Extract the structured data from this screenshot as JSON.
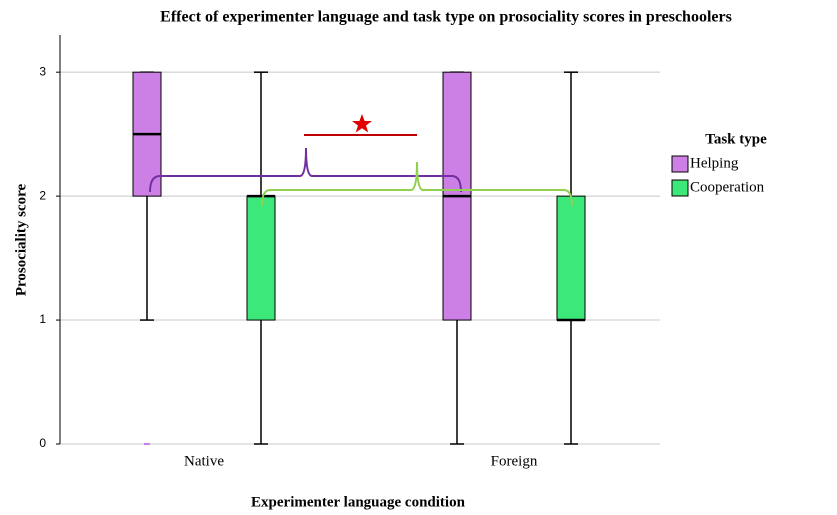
{
  "chart_data": {
    "type": "box",
    "title": "Effect of experimenter language and task type on prosociality scores in preschoolers",
    "xlabel": "Experimenter  language condition",
    "ylabel": "Prosociality score",
    "categories": [
      "Native",
      "Foreign"
    ],
    "legend_title": "Task type",
    "ylim": [
      0,
      3.3
    ],
    "yticks": [
      0,
      1,
      2,
      3
    ],
    "grid": true,
    "series": [
      {
        "name": "Helping",
        "color": "#cc80e6",
        "min": [
          1,
          0
        ],
        "q1": [
          2,
          1
        ],
        "median": [
          2.5,
          2
        ],
        "q3": [
          3,
          3
        ],
        "max": [
          3,
          3
        ],
        "outliers": [
          [
            0
          ],
          []
        ]
      },
      {
        "name": "Cooperation",
        "color": "#3de87a",
        "min": [
          0,
          0
        ],
        "q1": [
          1,
          1
        ],
        "median": [
          2,
          1
        ],
        "q3": [
          2,
          2
        ],
        "max": [
          3,
          3
        ],
        "outliers": [
          [],
          []
        ]
      }
    ]
  }
}
